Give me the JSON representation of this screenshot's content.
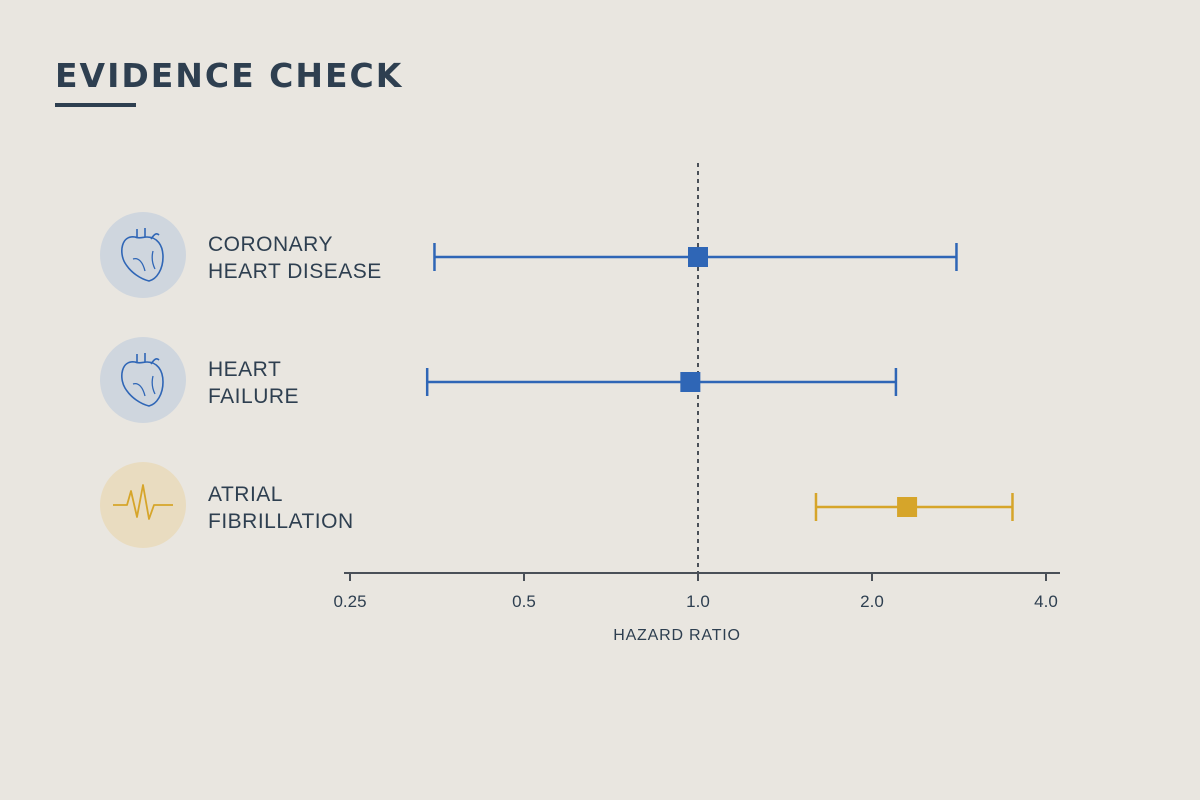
{
  "title": "EVIDENCE CHECK",
  "colors": {
    "background": "#e9e6e0",
    "text": "#2e3f50",
    "blue": "#2f66b6",
    "gold": "#d6a52a",
    "blue_circle": "#cfd6de",
    "gold_circle": "#e9dcc0"
  },
  "chart_data": {
    "type": "forest",
    "xlabel": "HAZARD RATIO",
    "xscale": "log2",
    "xlim": [
      0.25,
      4.0
    ],
    "ticks": [
      0.25,
      0.5,
      1.0,
      2.0,
      4.0
    ],
    "tick_labels": [
      "0.25",
      "0.5",
      "1.0",
      "2.0",
      "4.0"
    ],
    "reference_line": 1.0,
    "rows": [
      {
        "label": [
          "CORONARY",
          "HEART DISEASE"
        ],
        "icon": "heart-icon",
        "color": "blue",
        "estimate": 1.0,
        "ci_low": 0.35,
        "ci_high": 2.8
      },
      {
        "label": [
          "HEART",
          "FAILURE"
        ],
        "icon": "heart-icon",
        "color": "blue",
        "estimate": 0.97,
        "ci_low": 0.34,
        "ci_high": 2.2
      },
      {
        "label": [
          "ATRIAL",
          "FIBRILLATION"
        ],
        "icon": "pulse-icon",
        "color": "gold",
        "estimate": 2.3,
        "ci_low": 1.6,
        "ci_high": 3.5
      }
    ]
  }
}
